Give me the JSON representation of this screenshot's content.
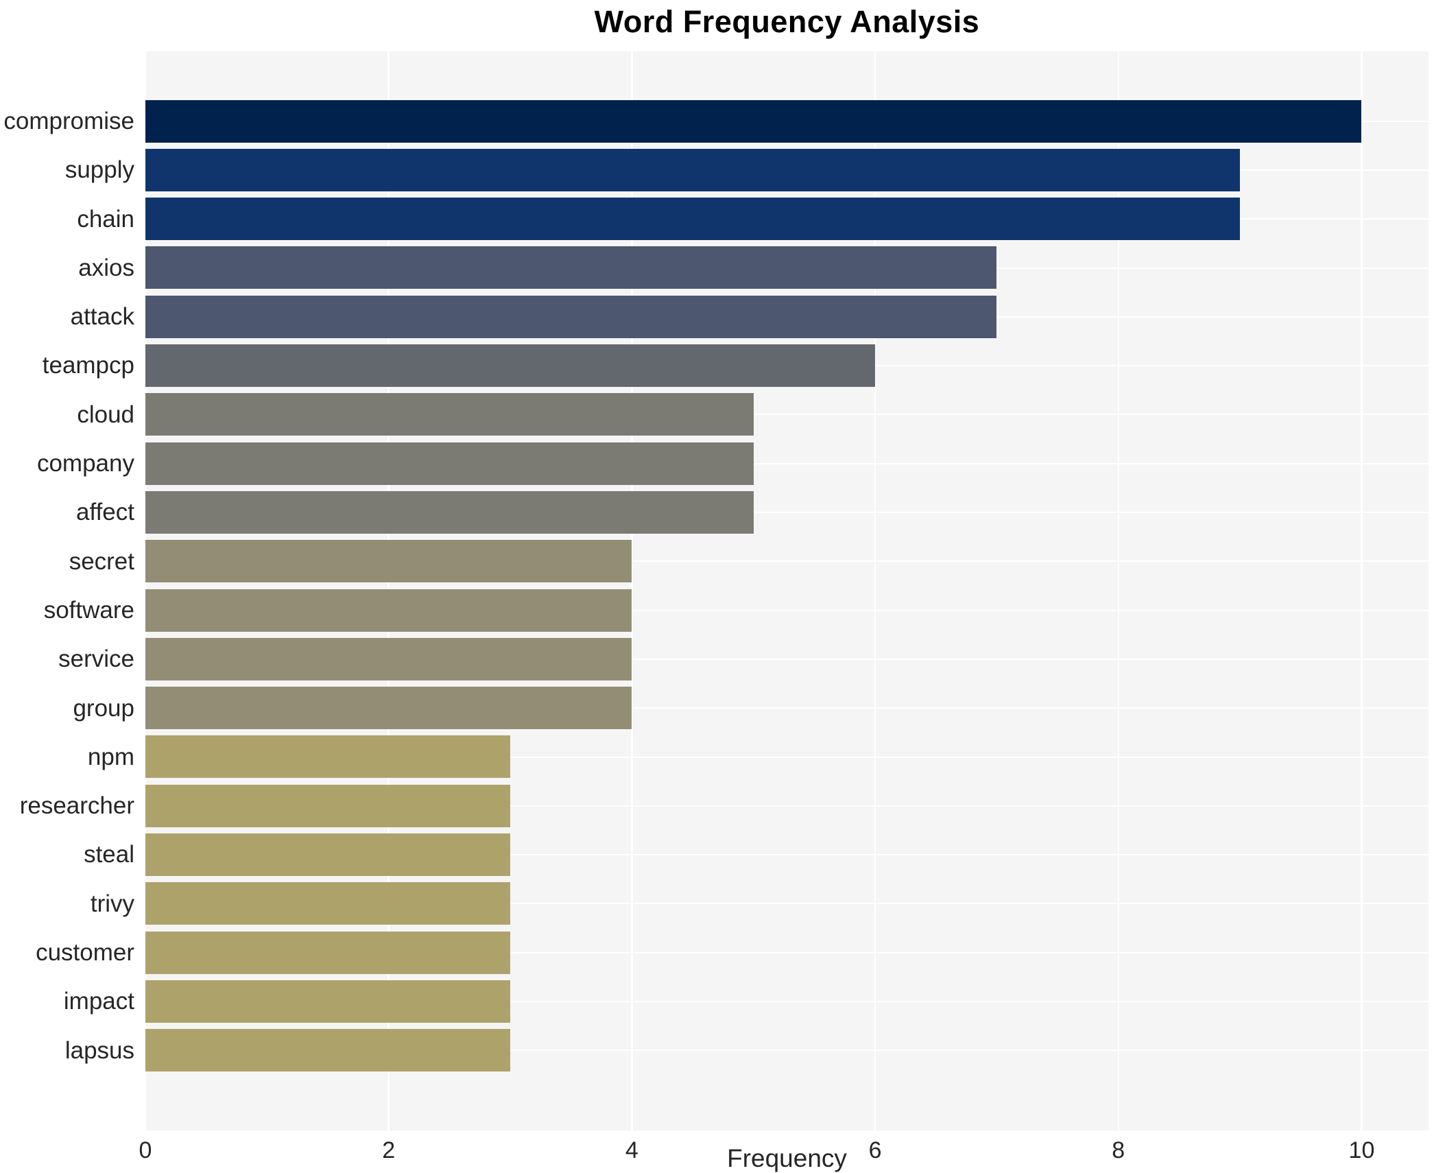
{
  "chart_data": {
    "type": "bar",
    "orientation": "horizontal",
    "title": "Word Frequency Analysis",
    "xlabel": "Frequency",
    "ylabel": "",
    "categories": [
      "compromise",
      "supply",
      "chain",
      "axios",
      "attack",
      "teampcp",
      "cloud",
      "company",
      "affect",
      "secret",
      "software",
      "service",
      "group",
      "npm",
      "researcher",
      "steal",
      "trivy",
      "customer",
      "impact",
      "lapsus"
    ],
    "values": [
      10,
      9,
      9,
      7,
      7,
      6,
      5,
      5,
      5,
      4,
      4,
      4,
      4,
      3,
      3,
      3,
      3,
      3,
      3,
      3
    ],
    "bar_colors": [
      "#00224d",
      "#0f356c",
      "#0f356c",
      "#4d576f",
      "#4d576f",
      "#63686f",
      "#7b7a73",
      "#7b7a73",
      "#7b7a73",
      "#948d76",
      "#948d76",
      "#948d76",
      "#948d76",
      "#aea26b",
      "#aea26b",
      "#aea26b",
      "#aea26b",
      "#aea26b",
      "#aea26b",
      "#aea26b"
    ],
    "xticks": [
      0,
      2,
      4,
      6,
      8,
      10
    ],
    "xlim": [
      0,
      10.55
    ],
    "grid": true,
    "legend_position": "none",
    "plot_background": "#f5f5f5",
    "grid_color": "#ffffff"
  }
}
